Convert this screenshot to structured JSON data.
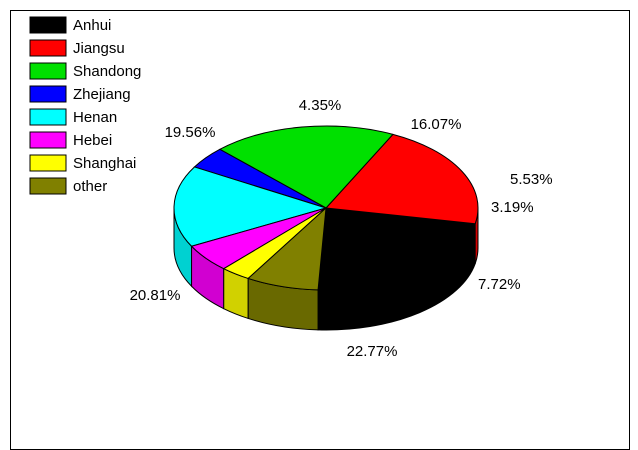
{
  "chart_data": {
    "type": "pie",
    "style": "3d",
    "legend_position": "top-left",
    "slices": [
      {
        "label": "Anhui",
        "value": 22.77,
        "display": "22.77%",
        "color": "#000000"
      },
      {
        "label": "Jiangsu",
        "value": 20.81,
        "display": "20.81%",
        "color": "#ff0000"
      },
      {
        "label": "Shandong",
        "value": 19.56,
        "display": "19.56%",
        "color": "#00e000"
      },
      {
        "label": "Zhejiang",
        "value": 4.35,
        "display": "4.35%",
        "color": "#0000ff"
      },
      {
        "label": "Henan",
        "value": 16.07,
        "display": "16.07%",
        "color": "#00ffff"
      },
      {
        "label": "Hebei",
        "value": 5.53,
        "display": "5.53%",
        "color": "#ff00ff"
      },
      {
        "label": "Shanghai",
        "value": 3.19,
        "display": "3.19%",
        "color": "#ffff00"
      },
      {
        "label": "other",
        "value": 7.72,
        "display": "7.72%",
        "color": "#808000"
      }
    ]
  }
}
